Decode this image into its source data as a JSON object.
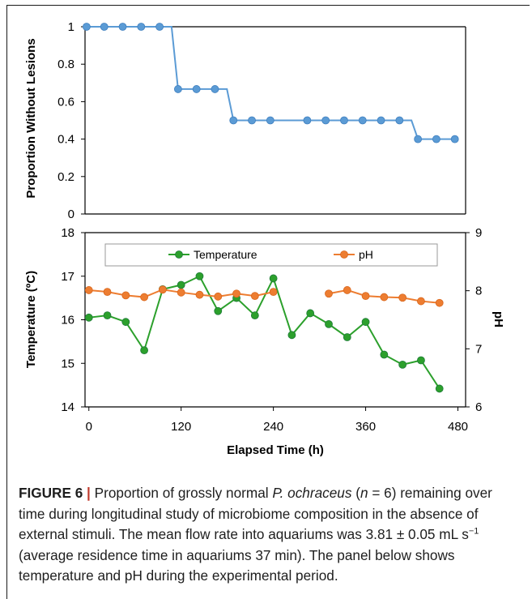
{
  "chart_data": [
    {
      "type": "line",
      "ylabel": "Proportion Without Lesions",
      "ylim": [
        0,
        1
      ],
      "yticks": [
        "0",
        "0.2",
        "0.4",
        "0.6",
        "0.8",
        "1"
      ],
      "xlim": [
        -5,
        490
      ],
      "grid": false,
      "series": [
        {
          "name": "",
          "color": "#5b9bd5",
          "x": [
            -3,
            20,
            44,
            68,
            92,
            116,
            140,
            164,
            188,
            212,
            236,
            284,
            308,
            332,
            356,
            380,
            404,
            428,
            452,
            476
          ],
          "y": [
            1,
            1,
            1,
            1,
            1,
            0.667,
            0.667,
            0.667,
            0.5,
            0.5,
            0.5,
            0.5,
            0.5,
            0.5,
            0.5,
            0.5,
            0.5,
            0.4,
            0.4,
            0.4
          ]
        }
      ]
    },
    {
      "type": "line",
      "xlabel": "Elapsed Time (h)",
      "ylabel": "Temperature (ºC)",
      "ylabel2": "pH",
      "xlim": [
        -5,
        490
      ],
      "xticks": [
        "0",
        "120",
        "240",
        "360",
        "480"
      ],
      "ylim": [
        14,
        18
      ],
      "yticks": [
        "14",
        "15",
        "16",
        "17",
        "18"
      ],
      "ylim2": [
        6,
        9
      ],
      "yticks2": [
        "6",
        "7",
        "8",
        "9"
      ],
      "legend": "top",
      "grid": false,
      "series": [
        {
          "name": "Temperature",
          "axis": "left",
          "color": "#2ca02c",
          "segments": [
            {
              "x": [
                0,
                24,
                48,
                72,
                96,
                120,
                144,
                168,
                192,
                216,
                240,
                264,
                288,
                312,
                336,
                360,
                384,
                408,
                432,
                456
              ],
              "y": [
                16.05,
                16.1,
                15.95,
                15.3,
                16.7,
                16.8,
                17.0,
                16.2,
                16.5,
                16.1,
                16.95,
                15.65,
                16.15,
                15.9,
                15.6,
                15.95,
                15.2,
                14.97,
                15.07,
                14.42
              ]
            }
          ]
        },
        {
          "name": "pH",
          "axis": "right",
          "color": "#ed7d31",
          "segments": [
            {
              "x": [
                0,
                24,
                48,
                72,
                96,
                120,
                144,
                168,
                192,
                216,
                240
              ],
              "y": [
                8.01,
                7.98,
                7.92,
                7.89,
                8.02,
                7.97,
                7.93,
                7.9,
                7.95,
                7.91,
                7.98
              ]
            },
            {
              "x": [
                312,
                336,
                360,
                384,
                408,
                432,
                456
              ],
              "y": [
                7.95,
                8.01,
                7.91,
                7.89,
                7.88,
                7.82,
                7.79
              ]
            }
          ]
        }
      ]
    }
  ],
  "caption": {
    "figure_label": "FIGURE 6",
    "separator": "|",
    "part1": "Proportion of grossly normal",
    "species": "P. ochraceus",
    "part2": "(",
    "n_symbol": "n",
    "part3": "= 6) remaining over time during longitudinal study of microbiome composition in the absence of external stimuli. The mean flow rate into aquariums was 3.81 ± 0.05 mL s",
    "superscript": "−1",
    "part4": "(average residence time in aquariums 37 min). The panel below shows temperature and pH during the experimental period."
  }
}
